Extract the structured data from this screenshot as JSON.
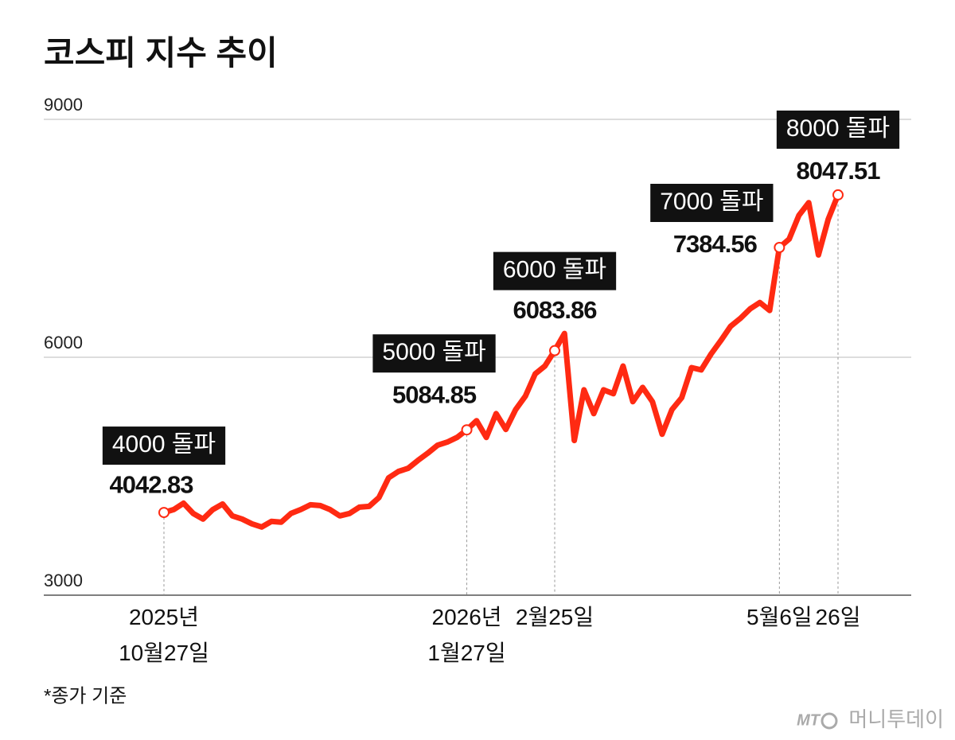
{
  "chart_data": {
    "type": "line",
    "title": "코스피 지수 추이",
    "footnote": "*종가 기준",
    "source_logo": "MT",
    "source": "머니투데이",
    "categories": [
      "2025년 10월27일",
      null,
      null,
      null,
      null,
      null,
      null,
      null,
      null,
      null,
      null,
      null,
      null,
      null,
      null,
      null,
      null,
      null,
      null,
      null,
      null,
      null,
      null,
      null,
      null,
      null,
      null,
      null,
      null,
      null,
      null,
      "2026년 1월27일",
      null,
      null,
      null,
      null,
      null,
      null,
      null,
      null,
      "2월25일",
      null,
      null,
      null,
      null,
      null,
      null,
      null,
      null,
      null,
      null,
      null,
      null,
      null,
      null,
      null,
      null,
      null,
      null,
      null,
      null,
      null,
      null,
      "5월6일",
      null,
      null,
      null,
      null,
      null,
      "26일"
    ],
    "series": [
      {
        "name": "코스피",
        "color": "#ff2a12",
        "values": [
          4042.83,
          4080,
          4160,
          4030,
          3960,
          4080,
          4150,
          4000,
          3960,
          3900,
          3860,
          3930,
          3920,
          4030,
          4080,
          4140,
          4130,
          4080,
          4000,
          4030,
          4110,
          4120,
          4230,
          4480,
          4560,
          4600,
          4700,
          4790,
          4890,
          4930,
          4990,
          5084.85,
          5200,
          4990,
          5290,
          5090,
          5340,
          5510,
          5790,
          5890,
          6083.86,
          6300,
          4950,
          5590,
          5290,
          5590,
          5540,
          5890,
          5440,
          5620,
          5440,
          5030,
          5340,
          5490,
          5870,
          5840,
          6040,
          6210,
          6390,
          6490,
          6610,
          6690,
          6590,
          7384.56,
          7490,
          7790,
          7950,
          7290,
          7740,
          8047.51
        ]
      }
    ],
    "annotations": [
      {
        "x": "2025년 10월27일",
        "text": "4000 돌파"
      },
      {
        "x": "2026년 1월27일",
        "text": "5000 돌파"
      },
      {
        "x": "2월25일",
        "text": "6000 돌파"
      },
      {
        "x": "5월6일",
        "text": "7000 돌파"
      },
      {
        "x": "26일",
        "text": "8000 돌파"
      }
    ],
    "ylim": [
      3000,
      9000
    ],
    "yticks": [
      3000,
      6000,
      9000
    ],
    "grid": true
  }
}
